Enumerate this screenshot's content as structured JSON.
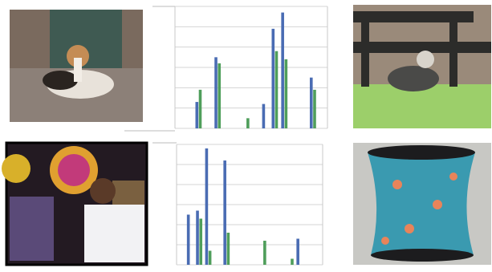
{
  "chart_data": [
    {
      "type": "bar",
      "categories": [
        null,
        null,
        null,
        null,
        null,
        null,
        null,
        null,
        null,
        null,
        null,
        null,
        null,
        null,
        null,
        null
      ],
      "series": [
        {
          "color": "#4a6cb3",
          "values": [
            0,
            0,
            1.3,
            0,
            3.5,
            0,
            0,
            0,
            0,
            1.2,
            4.9,
            5.7,
            0,
            0,
            2.5,
            0
          ]
        },
        {
          "color": "#4f9e5b",
          "values": [
            0,
            0,
            1.9,
            0,
            3.2,
            0,
            0,
            0.5,
            0,
            0,
            3.8,
            3.4,
            0,
            0,
            1.9,
            0
          ]
        }
      ],
      "ylim": [
        0,
        6
      ],
      "yticks": [
        0,
        1,
        2,
        3,
        4,
        5,
        6
      ],
      "grid": true
    },
    {
      "type": "bar",
      "categories": [
        null,
        null,
        null,
        null,
        null,
        null,
        null,
        null,
        null,
        null,
        null,
        null,
        null,
        null,
        null,
        null
      ],
      "series": [
        {
          "color": "#4a6cb3",
          "values": [
            0,
            2.5,
            2.7,
            5.8,
            0,
            5.2,
            0,
            0,
            0,
            0,
            0,
            0,
            0,
            1.3,
            0,
            0
          ]
        },
        {
          "color": "#4f9e5b",
          "values": [
            0,
            0,
            2.3,
            0.7,
            0,
            1.6,
            0,
            0,
            0,
            1.2,
            0,
            0,
            0.3,
            0,
            0,
            0
          ]
        }
      ],
      "ylim": [
        0,
        6
      ],
      "yticks": [
        0,
        1,
        2,
        3,
        4,
        5,
        6
      ],
      "grid": true
    }
  ]
}
